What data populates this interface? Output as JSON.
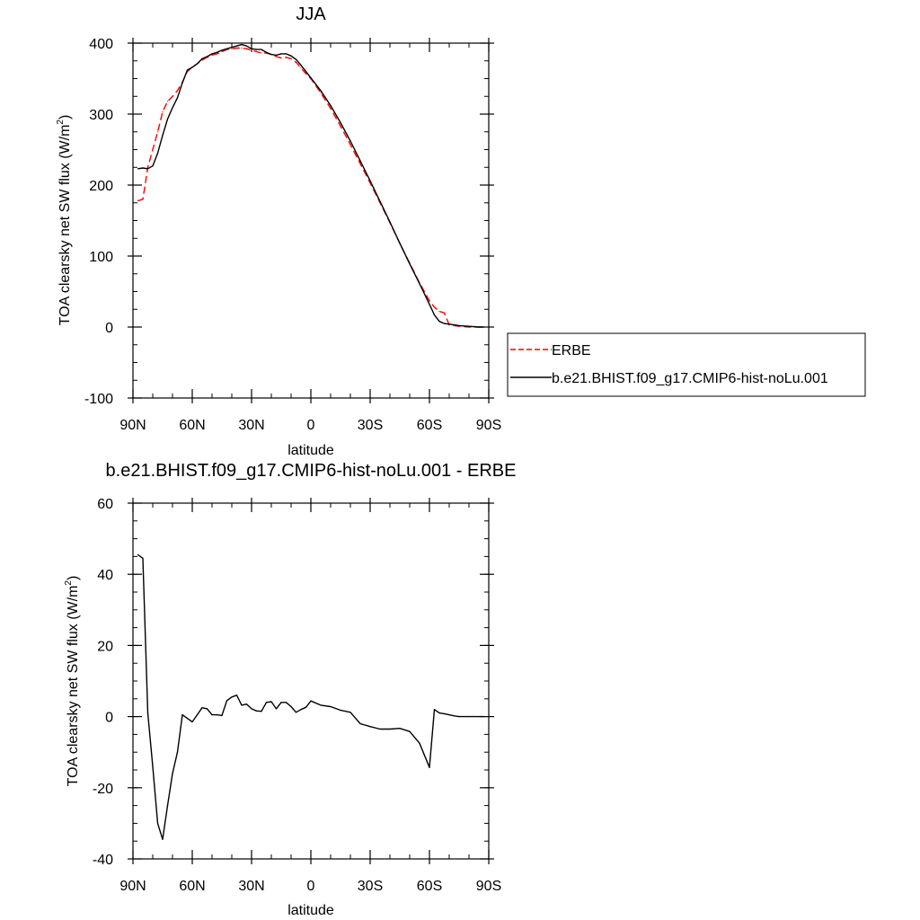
{
  "chart_data": [
    {
      "type": "line",
      "title": "JJA",
      "xlabel": "latitude",
      "ylabel": "TOA clearsky net SW flux (W/m²)",
      "ylabel_main": "TOA clearsky net SW flux (W/m",
      "ylabel_sup": "2",
      "ylabel_close": ")",
      "xlim": [
        90,
        -90
      ],
      "ylim": [
        -100,
        400
      ],
      "xticks": [
        90,
        60,
        30,
        0,
        -30,
        -60,
        -90
      ],
      "xtick_labels": [
        "90N",
        "60N",
        "30N",
        "0",
        "30S",
        "60S",
        "90S"
      ],
      "yticks": [
        -100,
        0,
        100,
        200,
        300,
        400
      ],
      "ytick_labels": [
        "-100",
        "0",
        "100",
        "200",
        "300",
        "400"
      ],
      "legend_position": "right",
      "series": [
        {
          "name": "ERBE",
          "color": "#ff0000",
          "dash": "dashed",
          "x": [
            87.5,
            85,
            82.5,
            80,
            77.5,
            75,
            72.5,
            70,
            67.5,
            65,
            62.5,
            60,
            57.5,
            55,
            52.5,
            50,
            47.5,
            45,
            42.5,
            40,
            37.5,
            35,
            32.5,
            30,
            27.5,
            25,
            22.5,
            20,
            17.5,
            15,
            12.5,
            10,
            7.5,
            5,
            2.5,
            0,
            -5,
            -10,
            -15,
            -20,
            -25,
            -30,
            -35,
            -40,
            -45,
            -50,
            -55,
            -60,
            -62.5,
            -65,
            -67.5,
            -70,
            -72.5,
            -75,
            -80,
            -85,
            -87.5
          ],
          "y": [
            178,
            180,
            225,
            250,
            275,
            303,
            318,
            325,
            333,
            345,
            360,
            366,
            371,
            376,
            380,
            383,
            385,
            388,
            391,
            392,
            393,
            393,
            392,
            390,
            388,
            386,
            386,
            384,
            381,
            379,
            380,
            378,
            373,
            365,
            357,
            350,
            330,
            308,
            283,
            257,
            230,
            203,
            175,
            147,
            118,
            90,
            62,
            37,
            28,
            22,
            20,
            3,
            2,
            1,
            0,
            0,
            0
          ]
        },
        {
          "name": "b.e21.BHIST.f09_g17.CMIP6-hist-noLu.001",
          "color": "#000000",
          "dash": "solid",
          "x": [
            87.5,
            85,
            82.5,
            80,
            77.5,
            75,
            72.5,
            70,
            67.5,
            65,
            62.5,
            60,
            57.5,
            55,
            52.5,
            50,
            47.5,
            45,
            42.5,
            40,
            37.5,
            35,
            32.5,
            30,
            27.5,
            25,
            22.5,
            20,
            17.5,
            15,
            12.5,
            10,
            7.5,
            5,
            2.5,
            0,
            -5,
            -10,
            -15,
            -20,
            -25,
            -30,
            -35,
            -40,
            -45,
            -50,
            -55,
            -60,
            -62.5,
            -65,
            -67.5,
            -70,
            -72.5,
            -75,
            -80,
            -85,
            -87.5
          ],
          "y": [
            223,
            224,
            223,
            227,
            245,
            270,
            293,
            309,
            323,
            344,
            362,
            366,
            371,
            378,
            381,
            385,
            387,
            390,
            392,
            394,
            396,
            398,
            396,
            392,
            391,
            391,
            387,
            384,
            383,
            385,
            385,
            382,
            377,
            369,
            360,
            351,
            333,
            312,
            288,
            262,
            234,
            206,
            177,
            148,
            118,
            89,
            61,
            32,
            17,
            8,
            5,
            4,
            3,
            2,
            1,
            0,
            0
          ]
        }
      ]
    },
    {
      "type": "line",
      "title": "b.e21.BHIST.f09_g17.CMIP6-hist-noLu.001 - ERBE",
      "xlabel": "latitude",
      "ylabel": "TOA clearsky net SW flux (W/m²)",
      "ylabel_main": "TOA clearsky net SW flux (W/m",
      "ylabel_sup": "2",
      "ylabel_close": ")",
      "xlim": [
        90,
        -90
      ],
      "ylim": [
        -40,
        60
      ],
      "xticks": [
        90,
        60,
        30,
        0,
        -30,
        -60,
        -90
      ],
      "xtick_labels": [
        "90N",
        "60N",
        "30N",
        "0",
        "30S",
        "60S",
        "90S"
      ],
      "yticks": [
        -40,
        -20,
        0,
        20,
        40,
        60
      ],
      "ytick_labels": [
        "-40",
        "-20",
        "0",
        "20",
        "40",
        "60"
      ],
      "series": [
        {
          "color": "#000000",
          "dash": "solid",
          "x": [
            87.5,
            85,
            82.5,
            80,
            77.5,
            75,
            72.5,
            70,
            67.5,
            65,
            62.5,
            60,
            57.5,
            55,
            52.5,
            50,
            47.5,
            45,
            42.5,
            40,
            37.5,
            35,
            32.5,
            30,
            27.5,
            25,
            22.5,
            20,
            17.5,
            15,
            12.5,
            10,
            7.5,
            5,
            2.5,
            0,
            -5,
            -10,
            -15,
            -20,
            -25,
            -30,
            -35,
            -40,
            -45,
            -50,
            -55,
            -60,
            -62.5,
            -65,
            -67.5,
            -70,
            -72.5,
            -75,
            -80,
            -85,
            -87.5
          ],
          "y": [
            45.5,
            44.5,
            1,
            -14,
            -30,
            -34.5,
            -25,
            -16,
            -10,
            0.5,
            -0.5,
            -1.5,
            0.5,
            2.5,
            2.2,
            0.5,
            0.5,
            0.3,
            4.5,
            5.5,
            6,
            3.2,
            3.5,
            2.2,
            1.6,
            1.5,
            4,
            4.2,
            2.2,
            4,
            4,
            2.8,
            1.2,
            2,
            2.6,
            4.4,
            3.2,
            2.8,
            1.8,
            1.2,
            -2,
            -2.8,
            -3.5,
            -3.5,
            -3.3,
            -4.2,
            -7.5,
            -14.3,
            2,
            1,
            0.8,
            0.5,
            0.2,
            0,
            0,
            0,
            0
          ]
        }
      ]
    }
  ]
}
